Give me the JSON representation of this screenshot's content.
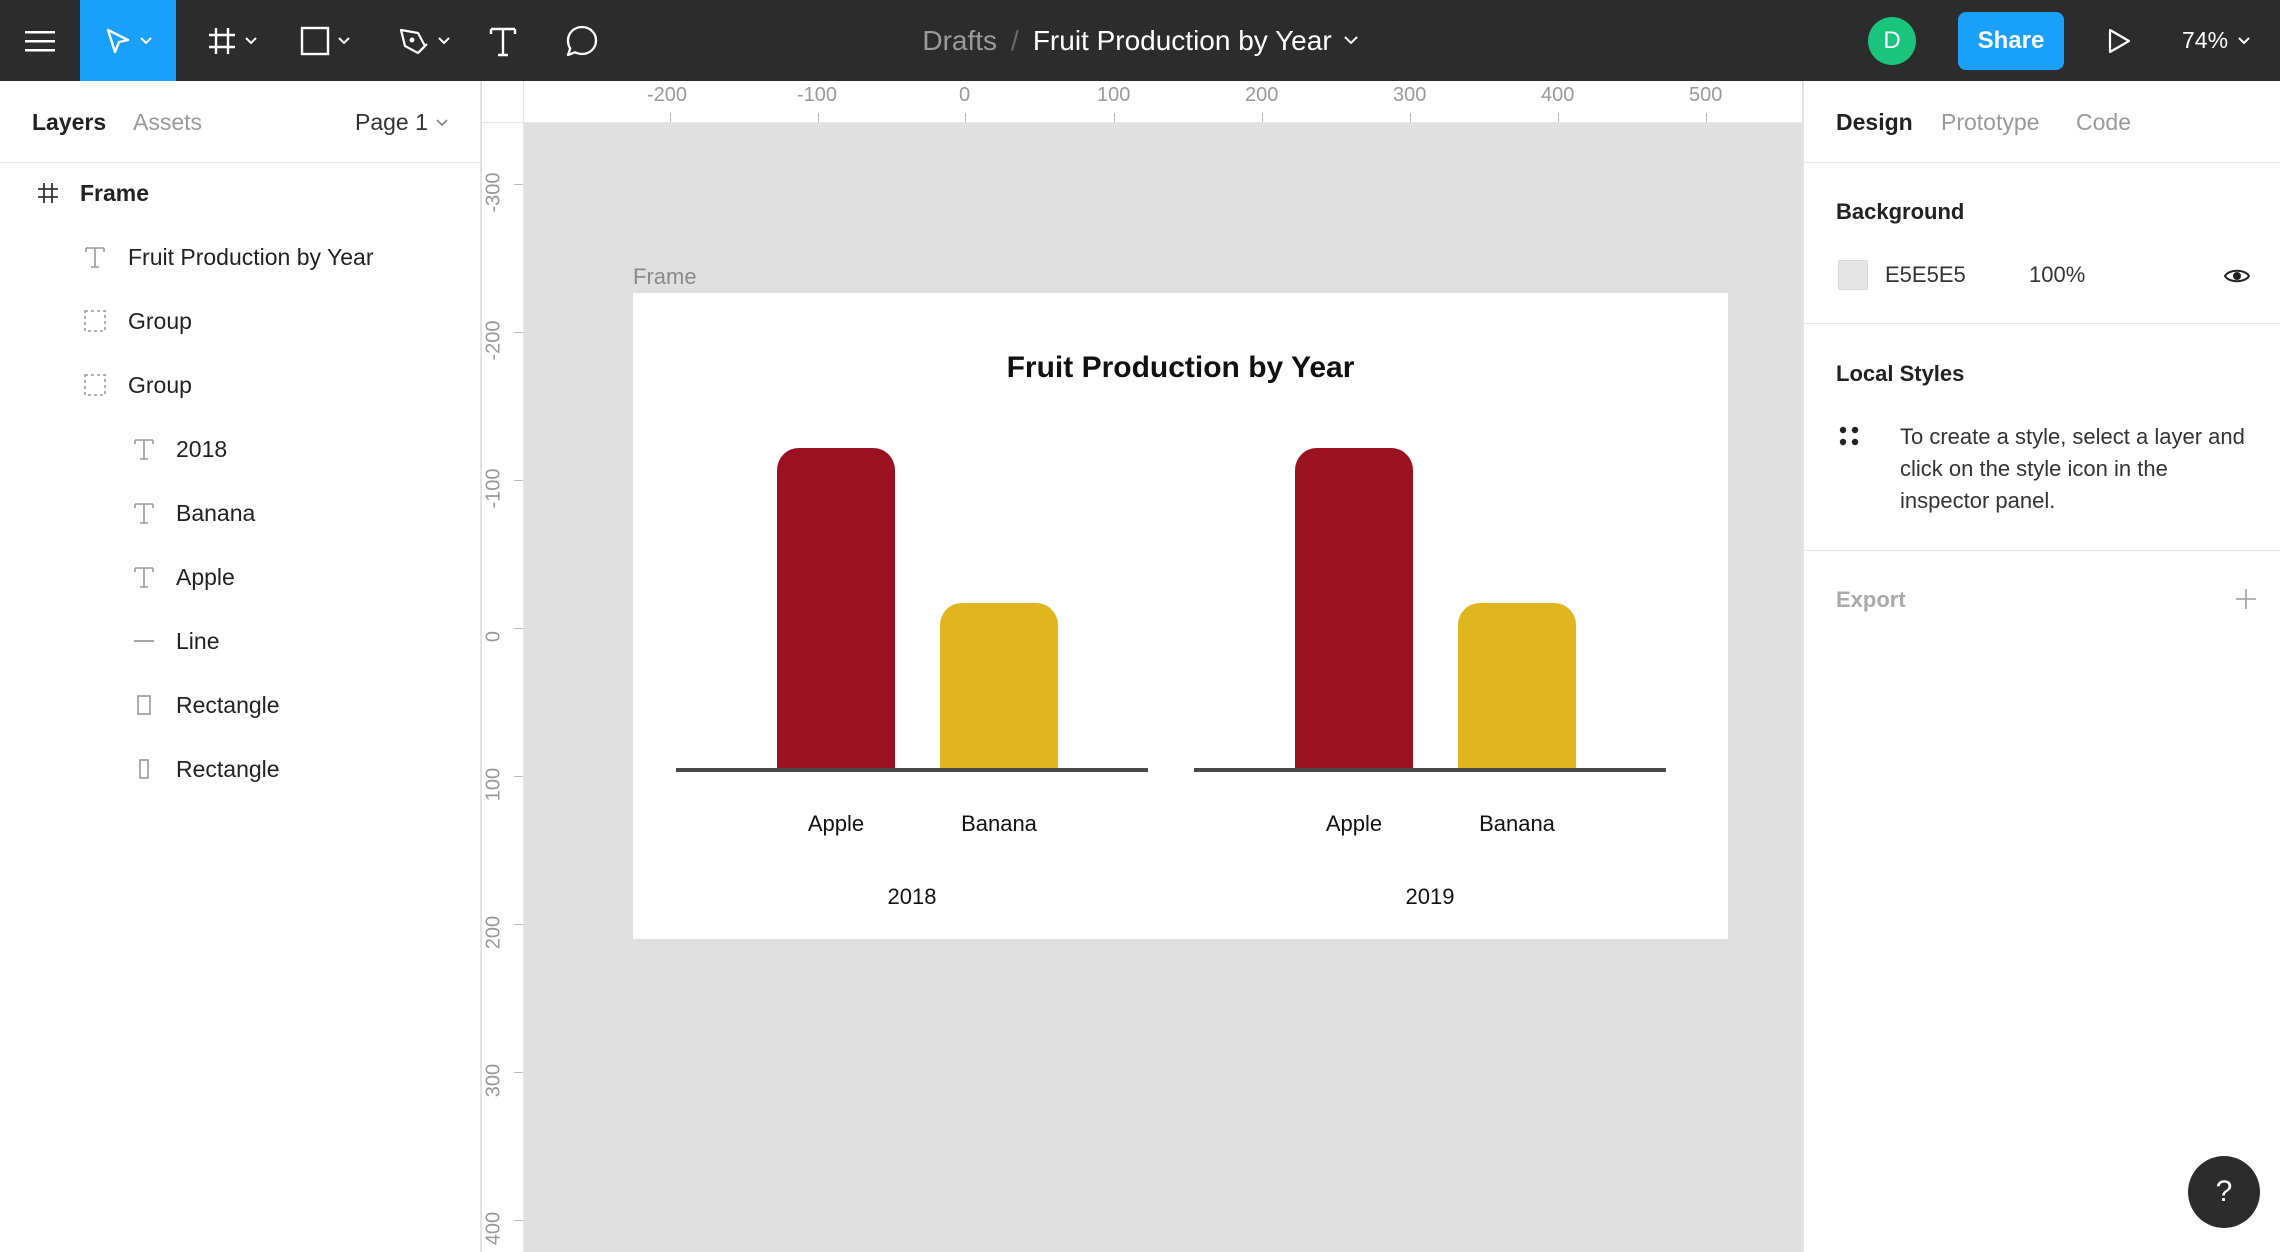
{
  "toolbar": {
    "breadcrumb_parent": "Drafts",
    "breadcrumb_separator": "/",
    "file_title": "Fruit Production by Year",
    "avatar_initial": "D",
    "share_label": "Share",
    "zoom_level": "74%",
    "accent_color": "#18a0fb",
    "tools": [
      "menu-icon",
      "move-icon",
      "frame-icon",
      "rectangle-icon",
      "pen-icon",
      "text-icon",
      "comment-icon"
    ]
  },
  "left_panel": {
    "tabs": [
      "Layers",
      "Assets"
    ],
    "page_selector": "Page 1",
    "layers": [
      {
        "name": "Frame",
        "icon": "frame-icon"
      },
      {
        "name": "Fruit Production by Year",
        "icon": "text-icon"
      },
      {
        "name": "Group",
        "icon": "group-icon"
      },
      {
        "name": "Group",
        "icon": "group-icon"
      },
      {
        "name": "2018",
        "icon": "text-icon"
      },
      {
        "name": "Banana",
        "icon": "text-icon"
      },
      {
        "name": "Apple",
        "icon": "text-icon"
      },
      {
        "name": "Line",
        "icon": "line-icon"
      },
      {
        "name": "Rectangle",
        "icon": "rectangle-icon"
      },
      {
        "name": "Rectangle",
        "icon": "rectangle-icon"
      }
    ]
  },
  "rulers": {
    "horizontal": [
      "-200",
      "-100",
      "0",
      "100",
      "200",
      "300",
      "400",
      "500"
    ],
    "vertical": [
      "-300",
      "-200",
      "-100",
      "0",
      "100",
      "200",
      "300",
      "400"
    ]
  },
  "canvas": {
    "frame_label": "Frame",
    "background_color": "#e0e0e0"
  },
  "chart_data": {
    "type": "bar",
    "title": "Fruit Production by Year",
    "groups": [
      "2018",
      "2019"
    ],
    "categories": [
      "Apple",
      "Banana"
    ],
    "series": [
      {
        "group": "2018",
        "values": [
          100,
          52
        ]
      },
      {
        "group": "2019",
        "values": [
          100,
          52
        ]
      }
    ],
    "colors": {
      "Apple": "#9b1120",
      "Banana": "#e0b520"
    },
    "ylim": [
      0,
      100
    ],
    "grid": false
  },
  "right_panel": {
    "tabs": [
      "Design",
      "Prototype",
      "Code"
    ],
    "background_title": "Background",
    "background_hex": "E5E5E5",
    "background_opacity": "100%",
    "local_styles_title": "Local Styles",
    "local_styles_text": "To create a style, select a layer and click on the style icon in the inspector panel.",
    "export_title": "Export"
  },
  "help_label": "?"
}
